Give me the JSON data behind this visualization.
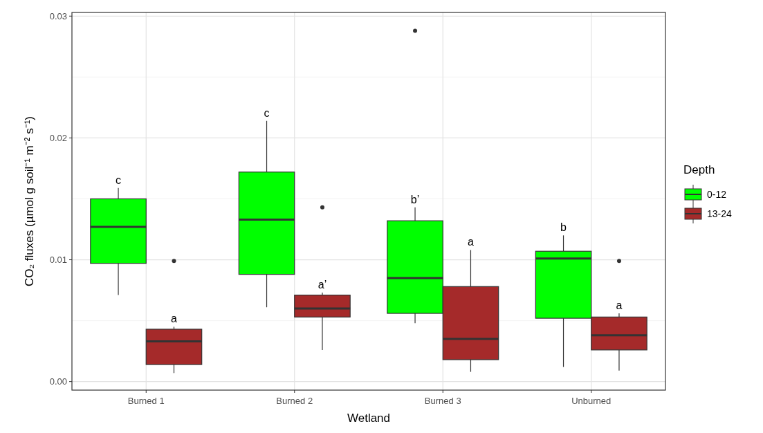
{
  "chart_data": {
    "type": "box",
    "xlabel": "Wetland",
    "ylabel": "CO₂ fluxes (µmol g soil⁻¹ m⁻² s⁻¹)",
    "legend_title": "Depth",
    "categories": [
      "Burned 1",
      "Burned 2",
      "Burned 3",
      "Unburned"
    ],
    "ylim": [
      -0.0007,
      0.0303
    ],
    "yticks": [
      {
        "value": 0,
        "label": "0.00"
      },
      0.01,
      0.02,
      0.03
    ],
    "grid": true,
    "legend": "right",
    "series": [
      {
        "name": "0-12",
        "color": "#00ff00",
        "boxes": [
          {
            "low": 0.0071,
            "q1": 0.0097,
            "median": 0.0127,
            "q3": 0.015,
            "high": 0.0159
          },
          {
            "low": 0.0061,
            "q1": 0.0088,
            "median": 0.0133,
            "q3": 0.0172,
            "high": 0.0214
          },
          {
            "low": 0.0048,
            "q1": 0.0056,
            "median": 0.0085,
            "q3": 0.0132,
            "high": 0.0143,
            "outliers": [
              0.0288
            ]
          },
          {
            "low": 0.0012,
            "q1": 0.0052,
            "median": 0.0101,
            "q3": 0.0107,
            "high": 0.012
          }
        ]
      },
      {
        "name": "13-24",
        "color": "#a52a2a",
        "boxes": [
          {
            "low": 0.0007,
            "q1": 0.0014,
            "median": 0.0033,
            "q3": 0.0043,
            "high": 0.0045,
            "outliers": [
              0.0099
            ]
          },
          {
            "low": 0.0026,
            "q1": 0.0053,
            "median": 0.006,
            "q3": 0.0071,
            "high": 0.0073,
            "outliers": [
              0.0143
            ]
          },
          {
            "low": 0.0008,
            "q1": 0.0018,
            "median": 0.0035,
            "q3": 0.0078,
            "high": 0.0108
          },
          {
            "low": 0.0009,
            "q1": 0.0026,
            "median": 0.0038,
            "q3": 0.0053,
            "high": 0.0056,
            "outliers": [
              0.0099
            ]
          }
        ]
      }
    ],
    "annotations": [
      "c",
      "a",
      "c",
      "a’",
      "b’",
      "a",
      "b",
      "a"
    ]
  }
}
